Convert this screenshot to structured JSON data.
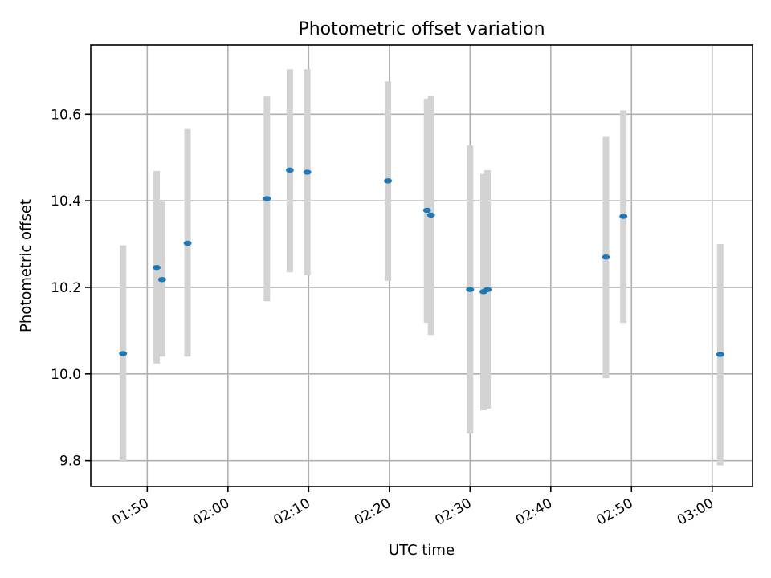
{
  "chart_data": {
    "type": "scatter",
    "title": "Photometric offset variation",
    "xlabel": "UTC time",
    "ylabel": "Photometric offset",
    "x_axis_type": "time",
    "xlim": [
      "01:43",
      "03:05"
    ],
    "ylim": [
      9.74,
      10.76
    ],
    "x_ticks": [
      "01:50",
      "02:00",
      "02:10",
      "02:20",
      "02:30",
      "02:40",
      "02:50",
      "03:00"
    ],
    "y_ticks": [
      9.8,
      10.0,
      10.2,
      10.4,
      10.6
    ],
    "grid": true,
    "colors": {
      "point": "#1f77b4",
      "errorbar": "#d3d3d3"
    },
    "points": [
      {
        "x": "01:47:00",
        "y": 10.047,
        "yerr_low": 9.797,
        "yerr_high": 10.297
      },
      {
        "x": "01:51:10",
        "y": 10.246,
        "yerr_low": 10.024,
        "yerr_high": 10.469
      },
      {
        "x": "01:51:50",
        "y": 10.218,
        "yerr_low": 10.04,
        "yerr_high": 10.398
      },
      {
        "x": "01:55:00",
        "y": 10.302,
        "yerr_low": 10.04,
        "yerr_high": 10.566
      },
      {
        "x": "02:04:50",
        "y": 10.405,
        "yerr_low": 10.168,
        "yerr_high": 10.641
      },
      {
        "x": "02:07:40",
        "y": 10.471,
        "yerr_low": 10.235,
        "yerr_high": 10.704
      },
      {
        "x": "02:09:50",
        "y": 10.466,
        "yerr_low": 10.228,
        "yerr_high": 10.704
      },
      {
        "x": "02:19:50",
        "y": 10.446,
        "yerr_low": 10.215,
        "yerr_high": 10.676
      },
      {
        "x": "02:24:40",
        "y": 10.378,
        "yerr_low": 10.118,
        "yerr_high": 10.636
      },
      {
        "x": "02:25:10",
        "y": 10.367,
        "yerr_low": 10.09,
        "yerr_high": 10.642
      },
      {
        "x": "02:30:00",
        "y": 10.195,
        "yerr_low": 9.862,
        "yerr_high": 10.528
      },
      {
        "x": "02:31:40",
        "y": 10.19,
        "yerr_low": 9.916,
        "yerr_high": 10.462
      },
      {
        "x": "02:32:10",
        "y": 10.195,
        "yerr_low": 9.92,
        "yerr_high": 10.471
      },
      {
        "x": "02:46:50",
        "y": 10.27,
        "yerr_low": 9.99,
        "yerr_high": 10.548
      },
      {
        "x": "02:49:00",
        "y": 10.364,
        "yerr_low": 10.118,
        "yerr_high": 10.609
      },
      {
        "x": "03:01:00",
        "y": 10.045,
        "yerr_low": 9.789,
        "yerr_high": 10.3
      }
    ]
  }
}
